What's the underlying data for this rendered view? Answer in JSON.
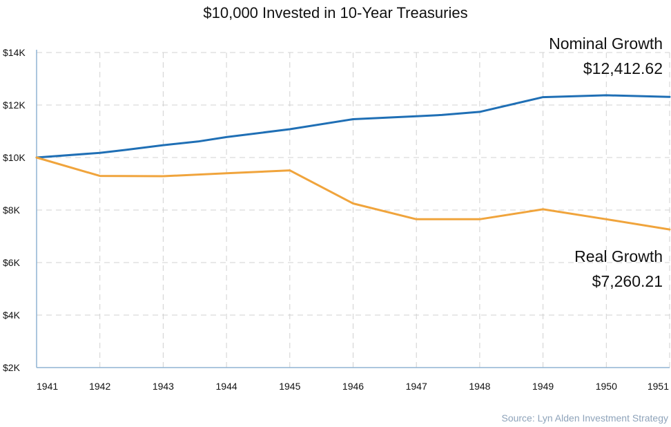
{
  "chart_data": {
    "type": "line",
    "title": "$10,000 Invested in 10-Year Treasuries",
    "xlabel": "",
    "ylabel": "",
    "x": [
      "1941",
      "1942",
      "1943",
      "1944",
      "1945",
      "1946",
      "1947",
      "1948",
      "1949",
      "1950",
      "1951"
    ],
    "y_ticks": [
      "$2K",
      "$4K",
      "$6K",
      "$8K",
      "$10K",
      "$12K",
      "$14K"
    ],
    "ylim": [
      2000,
      14000
    ],
    "grid": true,
    "series": [
      {
        "name": "Nominal Growth",
        "color": "#1f6fb5",
        "points": [
          [
            1941,
            10000
          ],
          [
            1942,
            10180
          ],
          [
            1942.4,
            10290
          ],
          [
            1943,
            10470
          ],
          [
            1943.55,
            10610
          ],
          [
            1944,
            10780
          ],
          [
            1945,
            11080
          ],
          [
            1946,
            11460
          ],
          [
            1947,
            11570
          ],
          [
            1947.4,
            11620
          ],
          [
            1948,
            11740
          ],
          [
            1949,
            12300
          ],
          [
            1950,
            12370
          ],
          [
            1951,
            12310
          ]
        ]
      },
      {
        "name": "Real Growth",
        "color": "#f0a43c",
        "points": [
          [
            1941,
            10000
          ],
          [
            1942,
            9300
          ],
          [
            1943,
            9290
          ],
          [
            1944,
            9400
          ],
          [
            1945,
            9510
          ],
          [
            1946,
            8250
          ],
          [
            1947,
            7650
          ],
          [
            1948,
            7650
          ],
          [
            1949,
            8030
          ],
          [
            1950,
            7650
          ],
          [
            1951,
            7260
          ]
        ]
      }
    ],
    "annotations": [
      {
        "label": "Nominal Growth",
        "value": "$12,412.62"
      },
      {
        "label": "Real Growth",
        "value": "$7,260.21"
      }
    ]
  },
  "source": "Source: Lyn Alden Investment Strategy"
}
